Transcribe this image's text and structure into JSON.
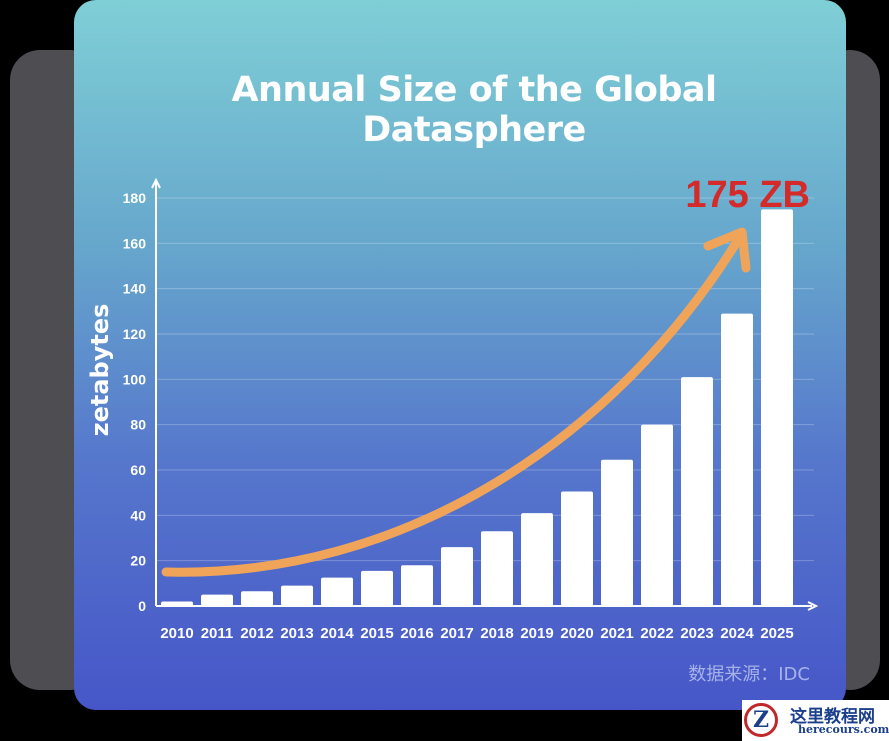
{
  "chart_data": {
    "type": "bar",
    "title": "Annual Size of the Global Datasphere",
    "xlabel": "",
    "ylabel": "zetabytes",
    "categories": [
      "2010",
      "2011",
      "2012",
      "2013",
      "2014",
      "2015",
      "2016",
      "2017",
      "2018",
      "2019",
      "2020",
      "2021",
      "2022",
      "2023",
      "2024",
      "2025"
    ],
    "values": [
      2,
      5,
      6.5,
      9,
      12.5,
      15.5,
      18,
      26,
      33,
      41,
      50.5,
      64.5,
      80,
      101,
      129,
      175
    ],
    "ylim": [
      0,
      180
    ],
    "yticks": [
      0,
      20,
      40,
      60,
      80,
      100,
      120,
      140,
      160,
      180
    ],
    "grid": true,
    "annotation": "175 ZB",
    "source": "数据来源：IDC",
    "colors": {
      "bar": "#ffffff",
      "arrow": "#f0a45a",
      "annotation": "#d42a2a"
    }
  },
  "watermark": {
    "cn": "这里教程网",
    "en": "herecours.com",
    "logo": "Z"
  }
}
